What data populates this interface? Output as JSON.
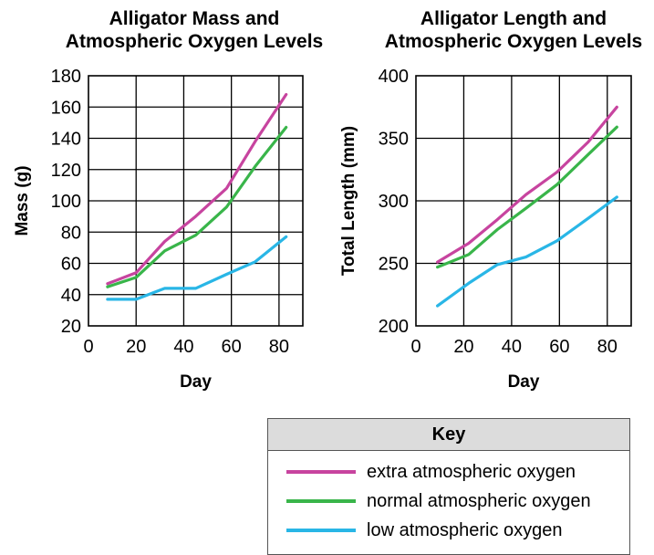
{
  "chart_data": [
    {
      "type": "line",
      "title": [
        "Alligator Mass and",
        "Atmospheric Oxygen Levels"
      ],
      "xlabel": "Day",
      "ylabel": "Mass (g)",
      "xlim": [
        0,
        90
      ],
      "ylim": [
        20,
        180
      ],
      "xticks": [
        "0",
        "20",
        "40",
        "60",
        "80"
      ],
      "yticks": [
        "20",
        "40",
        "60",
        "80",
        "100",
        "120",
        "140",
        "160",
        "180"
      ],
      "grid": true,
      "series": [
        {
          "name": "extra atmospheric oxygen",
          "color": "#c7449f",
          "x": [
            8,
            20,
            32,
            45,
            58,
            70,
            83
          ],
          "y": [
            47,
            54,
            74,
            90,
            108,
            138,
            168
          ]
        },
        {
          "name": "normal atmospheric oxygen",
          "color": "#39b54a",
          "x": [
            8,
            20,
            32,
            45,
            58,
            70,
            83
          ],
          "y": [
            45,
            51,
            68,
            78,
            96,
            122,
            147
          ]
        },
        {
          "name": "low atmospheric oxygen",
          "color": "#29b6e6",
          "x": [
            8,
            20,
            32,
            45,
            58,
            70,
            83
          ],
          "y": [
            37,
            37,
            44,
            44,
            53,
            61,
            77
          ]
        }
      ]
    },
    {
      "type": "line",
      "title": [
        "Alligator Length and",
        "Atmospheric Oxygen Levels"
      ],
      "xlabel": "Day",
      "ylabel": "Total Length (mm)",
      "xlim": [
        0,
        90
      ],
      "ylim": [
        200,
        400
      ],
      "xticks": [
        "0",
        "20",
        "40",
        "60",
        "80"
      ],
      "yticks": [
        "200",
        "250",
        "300",
        "350",
        "400"
      ],
      "grid": true,
      "series": [
        {
          "name": "extra atmospheric oxygen",
          "color": "#c7449f",
          "x": [
            9,
            22,
            34,
            46,
            59,
            72,
            84
          ],
          "y": [
            251,
            266,
            285,
            305,
            323,
            347,
            375
          ]
        },
        {
          "name": "normal atmospheric oxygen",
          "color": "#39b54a",
          "x": [
            9,
            22,
            34,
            46,
            59,
            72,
            84
          ],
          "y": [
            247,
            257,
            277,
            294,
            313,
            337,
            359
          ]
        },
        {
          "name": "low atmospheric oxygen",
          "color": "#29b6e6",
          "x": [
            9,
            22,
            34,
            46,
            59,
            72,
            84
          ],
          "y": [
            216,
            234,
            249,
            255,
            268,
            286,
            303
          ]
        }
      ]
    }
  ],
  "key": {
    "title": "Key",
    "items": [
      {
        "label": "extra atmospheric oxygen",
        "color": "#c7449f"
      },
      {
        "label": "normal atmospheric oxygen",
        "color": "#39b54a"
      },
      {
        "label": "low atmospheric oxygen",
        "color": "#29b6e6"
      }
    ]
  }
}
